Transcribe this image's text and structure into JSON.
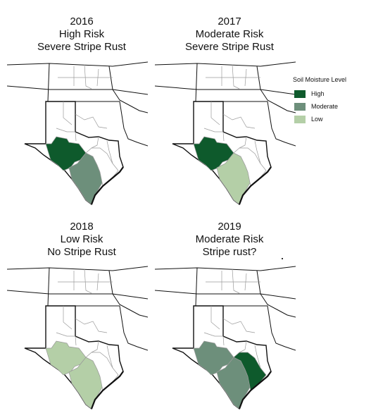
{
  "panels": [
    {
      "year": "2016",
      "risk": "High Risk",
      "rust": "Severe Stripe Rust",
      "zones": [
        "high",
        "moderate",
        "none"
      ]
    },
    {
      "year": "2017",
      "risk": "Moderate Risk",
      "rust": "Severe Stripe Rust",
      "zones": [
        "high",
        "low",
        "none"
      ]
    },
    {
      "year": "2018",
      "risk": "Low Risk",
      "rust": "No Stripe Rust",
      "zones": [
        "low",
        "low",
        "none"
      ]
    },
    {
      "year": "2019",
      "risk": "Moderate Risk",
      "rust": "Stripe rust?",
      "zones": [
        "moderate",
        "moderate",
        "high"
      ]
    }
  ],
  "legend": {
    "title": "Soil Moisture Level",
    "items": [
      {
        "key": "high",
        "label": "High",
        "color": "#0e5a2c"
      },
      {
        "key": "moderate",
        "label": "Moderate",
        "color": "#6d8f7b"
      },
      {
        "key": "low",
        "label": "Low",
        "color": "#b4cfa7"
      }
    ]
  },
  "colors": {
    "none": "#ffffff",
    "outline": "#111111",
    "inner": "#9a9a9a"
  }
}
